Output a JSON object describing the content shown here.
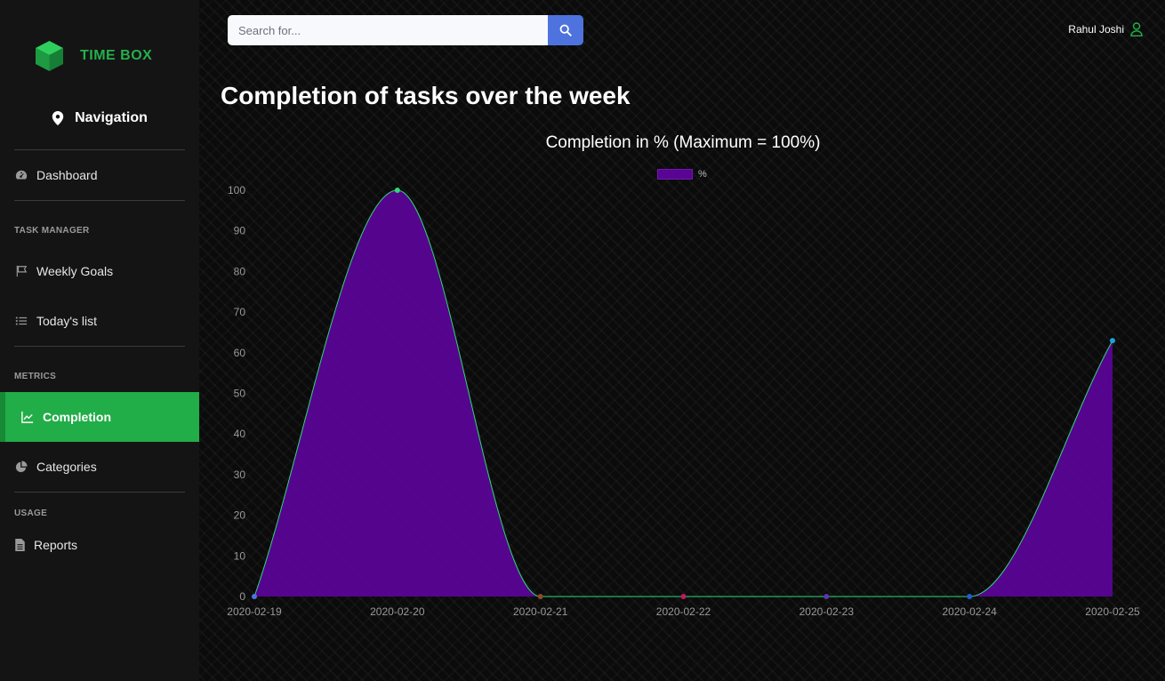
{
  "brand": {
    "name": "TIME BOX"
  },
  "sidebar": {
    "nav_heading": "Navigation",
    "dashboard": "Dashboard",
    "sections": {
      "task_manager": "TASK MANAGER",
      "metrics": "METRICS",
      "usage": "USAGE"
    },
    "items": {
      "weekly_goals": "Weekly Goals",
      "todays_list": "Today's list",
      "completion": "Completion",
      "categories": "Categories",
      "reports": "Reports"
    },
    "active_item": "Completion"
  },
  "search": {
    "placeholder": "Search for..."
  },
  "user": {
    "name": "Rahul Joshi"
  },
  "page": {
    "title": "Completion of tasks over the week"
  },
  "colors": {
    "accent_green": "#21ad48",
    "search_button": "#4e73df",
    "area_fill": "#5a0496",
    "line": "#2fd67a"
  },
  "icons": [
    "cube-logo-icon",
    "map-marker-icon",
    "tachometer-icon",
    "flag-icon",
    "list-icon",
    "chart-line-icon",
    "pie-chart-icon",
    "file-icon",
    "search-icon",
    "user-icon"
  ],
  "chart_data": {
    "type": "area",
    "title": "Completion in % (Maximum = 100%)",
    "legend": "%",
    "legend_position": "top",
    "categories": [
      "2020-02-19",
      "2020-02-20",
      "2020-02-21",
      "2020-02-22",
      "2020-02-23",
      "2020-02-24",
      "2020-02-25"
    ],
    "series": [
      {
        "name": "%",
        "values": [
          0,
          100,
          0,
          0,
          0,
          0,
          63
        ]
      }
    ],
    "y_ticks": [
      0,
      10,
      20,
      30,
      40,
      50,
      60,
      70,
      80,
      90,
      100
    ],
    "ylim": [
      0,
      100
    ],
    "grid": false,
    "point_colors": [
      "#4e73df",
      "#2fd67a",
      "#8a4b2a",
      "#c2185b",
      "#5e35b1",
      "#1e5fd0",
      "#1aa0dc"
    ]
  }
}
